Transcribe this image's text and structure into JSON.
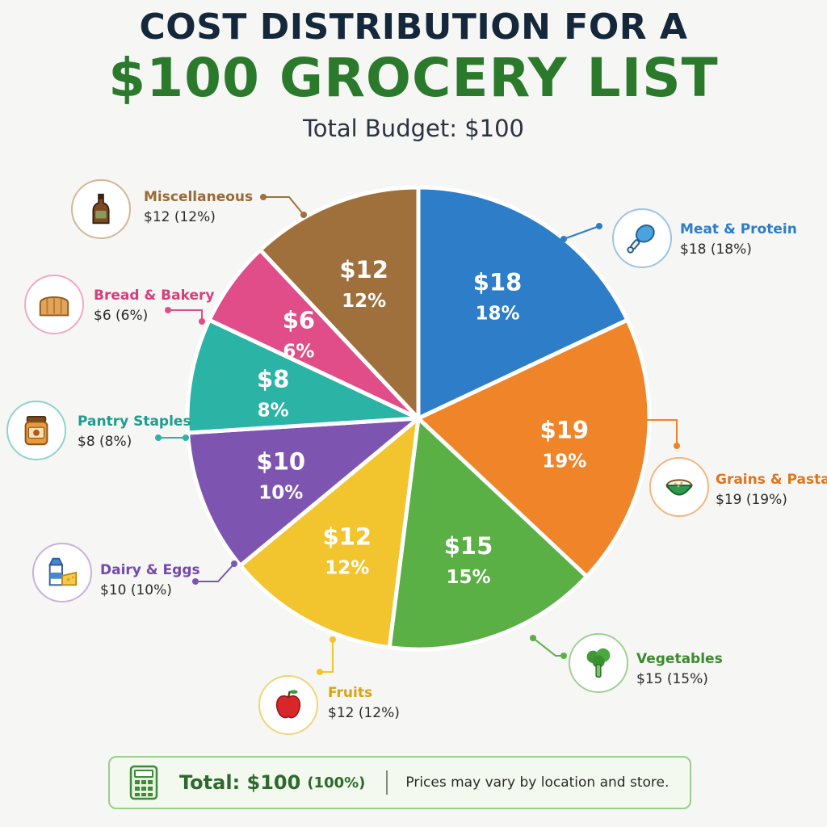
{
  "header": {
    "title_line1": "COST DISTRIBUTION FOR A",
    "title_line2": "$100 GROCERY LIST",
    "subtitle": "Total Budget: $100"
  },
  "chart_data": {
    "type": "pie",
    "title": "COST DISTRIBUTION FOR A $100 GROCERY LIST",
    "subtitle": "Total Budget: $100",
    "slices": [
      {
        "name": "Meat & Protein",
        "value": 18,
        "value_label": "$18",
        "percent_label": "18%",
        "callout_value": "$18 (18%)",
        "color": "#2d7dc8",
        "icon": "drumstick-icon"
      },
      {
        "name": "Grains & Pasta",
        "value": 19,
        "value_label": "$19",
        "percent_label": "19%",
        "callout_value": "$19 (19%)",
        "color": "#ef8428",
        "icon": "rice-bowl-icon"
      },
      {
        "name": "Vegetables",
        "value": 15,
        "value_label": "$15",
        "percent_label": "15%",
        "callout_value": "$15 (15%)",
        "color": "#5aaf45",
        "icon": "broccoli-icon"
      },
      {
        "name": "Fruits",
        "value": 12,
        "value_label": "$12",
        "percent_label": "12%",
        "callout_value": "$12 (12%)",
        "color": "#f2c42e",
        "icon": "apple-icon"
      },
      {
        "name": "Dairy & Eggs",
        "value": 10,
        "value_label": "$10",
        "percent_label": "10%",
        "callout_value": "$10 (10%)",
        "color": "#7d55b1",
        "icon": "milk-cheese-icon"
      },
      {
        "name": "Pantry Staples",
        "value": 8,
        "value_label": "$8",
        "percent_label": "8%",
        "callout_value": "$8 (8%)",
        "color": "#2bb3a5",
        "icon": "jar-icon"
      },
      {
        "name": "Bread & Bakery",
        "value": 6,
        "value_label": "$6",
        "percent_label": "6%",
        "callout_value": "$6 (6%)",
        "color": "#e04d88",
        "icon": "bread-icon"
      },
      {
        "name": "Miscellaneous",
        "value": 12,
        "value_label": "$12",
        "percent_label": "12%",
        "callout_value": "$12 (12%)",
        "color": "#a0703c",
        "icon": "bottle-icon"
      }
    ],
    "legend": "callouts around pie"
  },
  "footer": {
    "total": "Total: $100",
    "percent": "(100%)",
    "note": "Prices may vary by location and store.",
    "icon": "calculator-icon"
  }
}
